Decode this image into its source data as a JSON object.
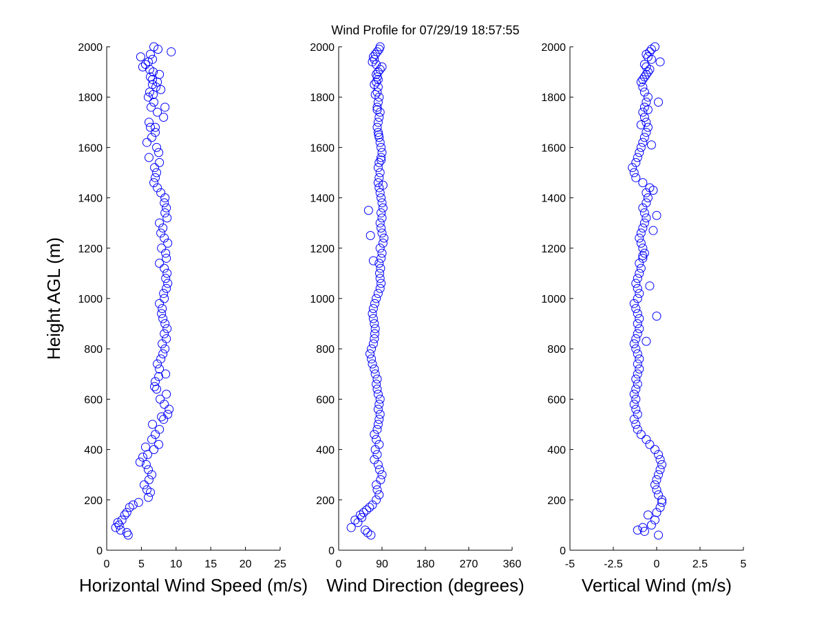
{
  "title": "Wind Profile for  07/29/19 18:57:55",
  "chart_data": [
    {
      "type": "scatter",
      "id": "speed",
      "xlabel": "Horizontal Wind Speed (m/s)",
      "ylabel": "Height AGL (m)",
      "xlim": [
        0,
        25
      ],
      "ylim": [
        0,
        2000
      ],
      "xticks": [
        0,
        5,
        10,
        15,
        20,
        25
      ],
      "xtick_labels": [
        "0",
        "5",
        "10",
        "15",
        "20",
        "25"
      ],
      "yticks": [
        0,
        200,
        400,
        600,
        800,
        1000,
        1200,
        1400,
        1600,
        1800,
        2000
      ],
      "ytick_labels": [
        "0",
        "200",
        "400",
        "600",
        "800",
        "1000",
        "1200",
        "1400",
        "1600",
        "1800",
        "2000"
      ],
      "marker_color": "#0000ff",
      "x": [
        3.1,
        2.9,
        2.0,
        1.3,
        1.8,
        1.6,
        2.2,
        2.6,
        2.9,
        3.3,
        3.8,
        4.6,
        6.0,
        6.3,
        5.8,
        5.4,
        6.1,
        6.5,
        6.0,
        5.7,
        4.8,
        5.2,
        5.9,
        6.8,
        5.6,
        7.5,
        6.5,
        7.0,
        7.6,
        6.6,
        8.2,
        7.9,
        8.8,
        9.0,
        8.3,
        7.7,
        8.6,
        7.2,
        6.9,
        7.0,
        7.5,
        8.5,
        7.6,
        7.3,
        7.8,
        8.1,
        8.4,
        8.0,
        8.6,
        8.3,
        8.7,
        8.4,
        8.1,
        7.9,
        8.0,
        7.6,
        8.3,
        8.2,
        8.6,
        8.8,
        8.5,
        8.7,
        8.3,
        7.6,
        8.6,
        8.5,
        7.9,
        8.8,
        8.3,
        7.8,
        8.1,
        7.6,
        8.7,
        8.4,
        8.6,
        8.3,
        8.4,
        7.8,
        7.3,
        6.8,
        7.0,
        7.2,
        6.9,
        7.6,
        6.1,
        7.5,
        7.2,
        5.8,
        6.5,
        7.0,
        6.3,
        6.1,
        8.2,
        7.3,
        6.4,
        6.8,
        6.0,
        6.7,
        6.2,
        7.1,
        7.3,
        6.6,
        6.3,
        7.6,
        6.7,
        6.2,
        5.2,
        5.6,
        6.0,
        6.6,
        4.9,
        6.3,
        9.3,
        7.4,
        6.8,
        6.6,
        7.8,
        8.4,
        7.0
      ],
      "y": [
        60,
        70,
        80,
        90,
        100,
        110,
        120,
        140,
        150,
        170,
        180,
        190,
        210,
        230,
        240,
        260,
        280,
        300,
        320,
        340,
        350,
        370,
        380,
        400,
        410,
        420,
        440,
        460,
        480,
        500,
        520,
        530,
        540,
        560,
        580,
        600,
        620,
        640,
        650,
        670,
        690,
        700,
        720,
        740,
        760,
        780,
        800,
        820,
        840,
        860,
        880,
        900,
        920,
        940,
        960,
        980,
        1000,
        1020,
        1040,
        1060,
        1080,
        1100,
        1120,
        1140,
        1160,
        1180,
        1200,
        1220,
        1240,
        1260,
        1280,
        1300,
        1320,
        1340,
        1360,
        1380,
        1400,
        1420,
        1440,
        1460,
        1480,
        1500,
        1520,
        1540,
        1560,
        1580,
        1600,
        1620,
        1640,
        1660,
        1680,
        1700,
        1720,
        1740,
        1760,
        1780,
        1800,
        1810,
        1820,
        1840,
        1860,
        1870,
        1880,
        1890,
        1900,
        1910,
        1920,
        1930,
        1940,
        1950,
        1960,
        1970,
        1980,
        1990,
        2000,
        1850,
        1830,
        1760,
        1680
      ]
    },
    {
      "type": "scatter",
      "id": "direction",
      "xlabel": "Wind Direction (degrees)",
      "ylabel": "",
      "xlim": [
        0,
        360
      ],
      "ylim": [
        0,
        2000
      ],
      "xticks": [
        0,
        90,
        180,
        270,
        360
      ],
      "xtick_labels": [
        "0",
        "90",
        "180",
        "270",
        "360"
      ],
      "yticks": [
        0,
        200,
        400,
        600,
        800,
        1000,
        1200,
        1400,
        1600,
        1800,
        2000
      ],
      "ytick_labels": [
        "0",
        "200",
        "400",
        "600",
        "800",
        "1000",
        "1200",
        "1400",
        "1600",
        "1800",
        "2000"
      ],
      "marker_color": "#0000ff",
      "x": [
        67,
        60,
        26,
        55,
        40,
        34,
        48,
        45,
        52,
        58,
        64,
        70,
        78,
        84,
        80,
        78,
        87,
        90,
        85,
        82,
        74,
        80,
        76,
        84,
        78,
        74,
        80,
        82,
        84,
        86,
        82,
        84,
        86,
        82,
        80,
        78,
        80,
        76,
        74,
        70,
        68,
        65,
        68,
        72,
        74,
        75,
        76,
        74,
        72,
        70,
        72,
        75,
        78,
        82,
        86,
        88,
        86,
        85,
        87,
        84,
        88,
        90,
        86,
        92,
        94,
        90,
        88,
        86,
        90,
        88,
        92,
        90,
        88,
        86,
        84,
        82,
        84,
        86,
        82,
        84,
        88,
        90,
        88,
        86,
        84,
        82,
        80,
        82,
        84,
        86,
        80,
        82,
        84,
        80,
        82,
        78,
        80,
        82,
        86,
        90,
        78,
        70,
        74,
        72,
        76,
        80,
        84,
        86,
        82,
        78,
        74,
        76,
        80,
        83,
        88,
        92,
        62,
        66,
        72
      ],
      "y": [
        60,
        70,
        90,
        80,
        110,
        120,
        130,
        140,
        150,
        160,
        170,
        180,
        200,
        220,
        240,
        260,
        280,
        300,
        320,
        340,
        360,
        380,
        400,
        420,
        440,
        460,
        480,
        500,
        520,
        540,
        560,
        580,
        600,
        620,
        640,
        660,
        680,
        700,
        720,
        740,
        760,
        780,
        800,
        820,
        840,
        860,
        880,
        900,
        920,
        940,
        960,
        980,
        1000,
        1020,
        1040,
        1060,
        1080,
        1100,
        1120,
        1140,
        1160,
        1180,
        1200,
        1220,
        1240,
        1260,
        1280,
        1300,
        1320,
        1340,
        1360,
        1380,
        1400,
        1420,
        1440,
        1460,
        1480,
        1500,
        1520,
        1540,
        1560,
        1580,
        1600,
        1620,
        1640,
        1660,
        1680,
        1700,
        1720,
        1740,
        1760,
        1780,
        1800,
        1820,
        1840,
        1860,
        1880,
        1900,
        1910,
        1920,
        1930,
        1940,
        1950,
        1960,
        1970,
        1980,
        1990,
        2000,
        1870,
        1890,
        1850,
        1810,
        1750,
        1650,
        1550,
        1450,
        1350,
        1250,
        1150
      ]
    },
    {
      "type": "scatter",
      "id": "vertical",
      "xlabel": "Vertical Wind (m/s)",
      "ylabel": "",
      "xlim": [
        -5,
        5
      ],
      "ylim": [
        0,
        2000
      ],
      "xticks": [
        -5,
        -2.5,
        0,
        2.5,
        5
      ],
      "xtick_labels": [
        "-5",
        "-2.5",
        "0",
        "2.5",
        "5"
      ],
      "yticks": [
        0,
        200,
        400,
        600,
        800,
        1000,
        1200,
        1400,
        1600,
        1800,
        2000
      ],
      "ytick_labels": [
        "0",
        "200",
        "400",
        "600",
        "800",
        "1000",
        "1200",
        "1400",
        "1600",
        "1800",
        "2000"
      ],
      "marker_color": "#0000ff",
      "x": [
        0.1,
        -0.7,
        -1.1,
        -0.8,
        -0.3,
        -0.1,
        -0.5,
        0.0,
        0.2,
        0.3,
        0.3,
        0.1,
        0.0,
        -0.1,
        0.0,
        0.1,
        0.2,
        0.3,
        0.2,
        0.1,
        -0.1,
        -0.4,
        -0.6,
        -0.9,
        -1.1,
        -1.2,
        -1.3,
        -1.1,
        -1.2,
        -1.3,
        -1.2,
        -1.3,
        -1.2,
        -1.1,
        -1.2,
        -1.1,
        -1.0,
        -1.1,
        -1.0,
        -1.1,
        -1.2,
        -1.3,
        -1.2,
        -1.1,
        -1.0,
        -1.1,
        -1.0,
        -1.1,
        -1.2,
        -1.3,
        -1.1,
        -1.0,
        -1.1,
        -1.2,
        -1.1,
        -1.0,
        -0.9,
        -1.0,
        -0.8,
        -0.7,
        -0.8,
        -0.9,
        -1.0,
        -0.9,
        -0.8,
        -0.7,
        -0.6,
        -0.7,
        -0.8,
        -0.6,
        -0.5,
        -0.6,
        -0.4,
        -0.8,
        -1.2,
        -1.3,
        -1.4,
        -1.2,
        -1.1,
        -1.0,
        -0.9,
        -0.8,
        -0.7,
        -0.6,
        -0.5,
        -0.6,
        -0.7,
        -0.8,
        -0.7,
        -0.6,
        -0.5,
        -0.7,
        -0.8,
        -0.9,
        -0.8,
        -0.7,
        -0.6,
        -0.5,
        -0.4,
        -0.6,
        -0.7,
        0.2,
        -0.3,
        -0.5,
        -0.6,
        -0.4,
        -0.3,
        -0.1,
        0.1,
        -0.5,
        -0.9,
        -0.3,
        -0.2,
        0.0,
        -0.2,
        -0.8,
        -0.4,
        0.0,
        -0.6
      ],
      "y": [
        60,
        75,
        80,
        90,
        100,
        120,
        140,
        150,
        170,
        190,
        200,
        220,
        240,
        260,
        280,
        300,
        320,
        340,
        360,
        380,
        400,
        420,
        440,
        460,
        480,
        500,
        520,
        540,
        560,
        580,
        600,
        620,
        640,
        660,
        680,
        700,
        720,
        740,
        760,
        780,
        800,
        820,
        840,
        860,
        880,
        900,
        920,
        940,
        960,
        980,
        1000,
        1020,
        1040,
        1060,
        1080,
        1100,
        1120,
        1140,
        1160,
        1180,
        1200,
        1220,
        1240,
        1260,
        1280,
        1300,
        1320,
        1340,
        1360,
        1380,
        1400,
        1420,
        1440,
        1460,
        1480,
        1500,
        1520,
        1540,
        1560,
        1580,
        1600,
        1620,
        1640,
        1660,
        1680,
        1700,
        1720,
        1740,
        1760,
        1780,
        1800,
        1820,
        1840,
        1860,
        1870,
        1880,
        1890,
        1900,
        1910,
        1920,
        1930,
        1940,
        1950,
        1960,
        1970,
        1980,
        1990,
        2000,
        1780,
        1750,
        1690,
        1610,
        1430,
        1330,
        1270,
        1170,
        1050,
        930,
        830
      ]
    }
  ]
}
